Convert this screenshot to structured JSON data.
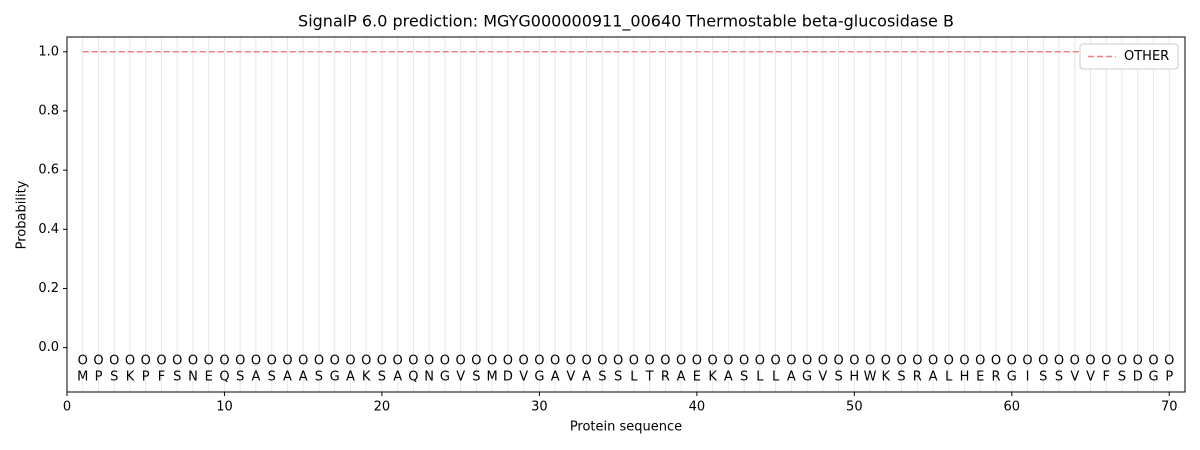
{
  "chart_data": {
    "type": "line",
    "title": "SignalP 6.0 prediction: MGYG000000911_00640 Thermostable beta-glucosidase B",
    "x_label": "Protein sequence",
    "y_label": "Probability",
    "x": [
      1,
      2,
      3,
      4,
      5,
      6,
      7,
      8,
      9,
      10,
      11,
      12,
      13,
      14,
      15,
      16,
      17,
      18,
      19,
      20,
      21,
      22,
      23,
      24,
      25,
      26,
      27,
      28,
      29,
      30,
      31,
      32,
      33,
      34,
      35,
      36,
      37,
      38,
      39,
      40,
      41,
      42,
      43,
      44,
      45,
      46,
      47,
      48,
      49,
      50,
      51,
      52,
      53,
      54,
      55,
      56,
      57,
      58,
      59,
      60,
      61,
      62,
      63,
      64,
      65,
      66,
      67,
      68,
      69,
      70
    ],
    "residues": [
      "M",
      "P",
      "S",
      "K",
      "P",
      "F",
      "S",
      "N",
      "E",
      "Q",
      "S",
      "A",
      "S",
      "A",
      "A",
      "S",
      "G",
      "A",
      "K",
      "S",
      "A",
      "Q",
      "N",
      "G",
      "V",
      "S",
      "M",
      "D",
      "V",
      "G",
      "A",
      "V",
      "A",
      "S",
      "S",
      "L",
      "T",
      "R",
      "A",
      "E",
      "K",
      "A",
      "S",
      "L",
      "L",
      "A",
      "G",
      "V",
      "S",
      "H",
      "W",
      "K",
      "S",
      "R",
      "A",
      "L",
      "H",
      "E",
      "R",
      "G",
      "I",
      "S",
      "S",
      "V",
      "V",
      "F",
      "S",
      "D",
      "G",
      "P"
    ],
    "region_labels": [
      "O",
      "O",
      "O",
      "O",
      "O",
      "O",
      "O",
      "O",
      "O",
      "O",
      "O",
      "O",
      "O",
      "O",
      "O",
      "O",
      "O",
      "O",
      "O",
      "O",
      "O",
      "O",
      "O",
      "O",
      "O",
      "O",
      "O",
      "O",
      "O",
      "O",
      "O",
      "O",
      "O",
      "O",
      "O",
      "O",
      "O",
      "O",
      "O",
      "O",
      "O",
      "O",
      "O",
      "O",
      "O",
      "O",
      "O",
      "O",
      "O",
      "O",
      "O",
      "O",
      "O",
      "O",
      "O",
      "O",
      "O",
      "O",
      "O",
      "O",
      "O",
      "O",
      "O",
      "O",
      "O",
      "O",
      "O",
      "O",
      "O",
      "O"
    ],
    "series": [
      {
        "name": "OTHER",
        "color": "#f08080",
        "dash": true,
        "values": [
          1,
          1,
          1,
          1,
          1,
          1,
          1,
          1,
          1,
          1,
          1,
          1,
          1,
          1,
          1,
          1,
          1,
          1,
          1,
          1,
          1,
          1,
          1,
          1,
          1,
          1,
          1,
          1,
          1,
          1,
          1,
          1,
          1,
          1,
          1,
          1,
          1,
          1,
          1,
          1,
          1,
          1,
          1,
          1,
          1,
          1,
          1,
          1,
          1,
          1,
          1,
          1,
          1,
          1,
          1,
          1,
          1,
          1,
          1,
          1,
          1,
          1,
          1,
          1,
          1,
          1,
          1,
          1,
          1,
          1
        ]
      }
    ],
    "xlim": [
      0,
      71
    ],
    "ylim": [
      -0.15,
      1.05
    ],
    "xticks": [
      0,
      10,
      20,
      30,
      40,
      50,
      60,
      70
    ],
    "yticks": [
      {
        "value": 0,
        "label": "0.0"
      },
      0.2,
      0.4,
      0.6,
      0.8,
      {
        "value": 1,
        "label": "1.0"
      }
    ],
    "legend": "upper right"
  }
}
